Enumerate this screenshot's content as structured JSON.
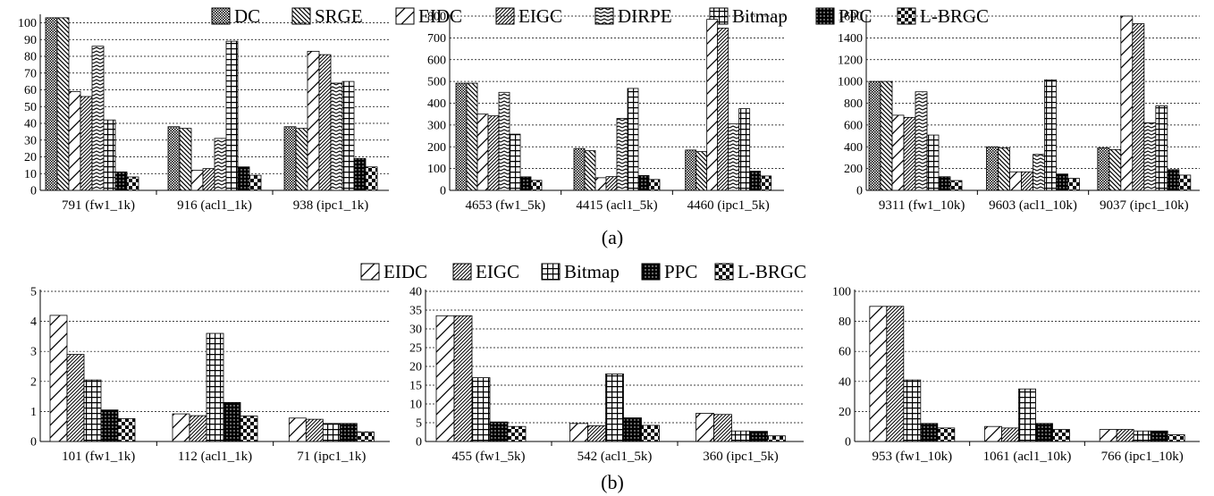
{
  "chart_data": [
    {
      "type": "bar",
      "group": "a",
      "categories": [
        "791 (fw1_1k)",
        "916 (acl1_1k)",
        "938 (ipc1_1k)"
      ],
      "ylim": [
        0,
        104
      ],
      "yticks": [
        0,
        10,
        20,
        30,
        40,
        50,
        60,
        70,
        80,
        90,
        100
      ],
      "series": [
        {
          "name": "DC",
          "values": [
            103,
            38,
            38
          ]
        },
        {
          "name": "SRGE",
          "values": [
            103,
            37,
            37
          ]
        },
        {
          "name": "EIDC",
          "values": [
            59,
            12,
            83
          ]
        },
        {
          "name": "EIGC",
          "values": [
            56,
            13,
            81
          ]
        },
        {
          "name": "DIRPE",
          "values": [
            86,
            31,
            64
          ]
        },
        {
          "name": "Bitmap",
          "values": [
            42,
            89,
            65
          ]
        },
        {
          "name": "PPC",
          "values": [
            11,
            14,
            19
          ]
        },
        {
          "name": "L-BRGC",
          "values": [
            8,
            9,
            14
          ]
        }
      ]
    },
    {
      "type": "bar",
      "group": "a",
      "categories": [
        "4653 (fw1_5k)",
        "4415 (acl1_5k)",
        "4460 (ipc1_5k)"
      ],
      "ylim": [
        0,
        800
      ],
      "yticks": [
        0,
        100,
        200,
        300,
        400,
        500,
        600,
        700,
        800
      ],
      "series": [
        {
          "name": "DC",
          "values": [
            492,
            192,
            185
          ]
        },
        {
          "name": "SRGE",
          "values": [
            492,
            182,
            178
          ]
        },
        {
          "name": "EIDC",
          "values": [
            350,
            58,
            785
          ]
        },
        {
          "name": "EIGC",
          "values": [
            342,
            63,
            745
          ]
        },
        {
          "name": "DIRPE",
          "values": [
            450,
            330,
            305
          ]
        },
        {
          "name": "Bitmap",
          "values": [
            258,
            468,
            375
          ]
        },
        {
          "name": "PPC",
          "values": [
            62,
            68,
            88
          ]
        },
        {
          "name": "L-BRGC",
          "values": [
            46,
            50,
            66
          ]
        }
      ]
    },
    {
      "type": "bar",
      "group": "a",
      "categories": [
        "9311 (fw1_10k)",
        "9603 (acl1_10k)",
        "9037 (ipc1_10k)"
      ],
      "ylim": [
        0,
        1600
      ],
      "yticks": [
        0,
        200,
        400,
        600,
        800,
        1000,
        1200,
        1400,
        1600
      ],
      "series": [
        {
          "name": "DC",
          "values": [
            1000,
            400,
            390
          ]
        },
        {
          "name": "SRGE",
          "values": [
            1000,
            390,
            375
          ]
        },
        {
          "name": "EIDC",
          "values": [
            690,
            170,
            1610
          ]
        },
        {
          "name": "EIGC",
          "values": [
            670,
            170,
            1530
          ]
        },
        {
          "name": "DIRPE",
          "values": [
            905,
            330,
            620
          ]
        },
        {
          "name": "Bitmap",
          "values": [
            508,
            1015,
            775
          ]
        },
        {
          "name": "PPC",
          "values": [
            125,
            150,
            190
          ]
        },
        {
          "name": "L-BRGC",
          "values": [
            90,
            110,
            140
          ]
        }
      ]
    },
    {
      "type": "bar",
      "group": "b",
      "categories": [
        "101 (fw1_1k)",
        "112 (acl1_1k)",
        "71 (ipc1_1k)"
      ],
      "ylim": [
        0,
        5
      ],
      "yticks": [
        0,
        1,
        2,
        3,
        4,
        5
      ],
      "series": [
        {
          "name": "EIDC",
          "values": [
            4.2,
            0.92,
            0.78
          ]
        },
        {
          "name": "EIGC",
          "values": [
            2.9,
            0.86,
            0.74
          ]
        },
        {
          "name": "Bitmap",
          "values": [
            2.05,
            3.6,
            0.6
          ]
        },
        {
          "name": "PPC",
          "values": [
            1.05,
            1.3,
            0.6
          ]
        },
        {
          "name": "L-BRGC",
          "values": [
            0.76,
            0.85,
            0.32
          ]
        }
      ]
    },
    {
      "type": "bar",
      "group": "b",
      "categories": [
        "455 (fw1_5k)",
        "542 (acl1_5k)",
        "360 (ipc1_5k)"
      ],
      "ylim": [
        0,
        40
      ],
      "yticks": [
        0,
        5,
        10,
        15,
        20,
        25,
        30,
        35,
        40
      ],
      "series": [
        {
          "name": "EIDC",
          "values": [
            33.5,
            4.8,
            7.5
          ]
        },
        {
          "name": "EIGC",
          "values": [
            33.5,
            4.2,
            7.2
          ]
        },
        {
          "name": "Bitmap",
          "values": [
            17,
            18,
            2.8
          ]
        },
        {
          "name": "PPC",
          "values": [
            5.2,
            6.3,
            2.7
          ]
        },
        {
          "name": "L-BRGC",
          "values": [
            4.0,
            4.3,
            1.5
          ]
        }
      ]
    },
    {
      "type": "bar",
      "group": "b",
      "categories": [
        "953 (fw1_10k)",
        "1061 (acl1_10k)",
        "766 (ipc1_10k)"
      ],
      "ylim": [
        0,
        100
      ],
      "yticks": [
        0,
        20,
        40,
        60,
        80,
        100
      ],
      "series": [
        {
          "name": "EIDC",
          "values": [
            90,
            10,
            8
          ]
        },
        {
          "name": "EIGC",
          "values": [
            90,
            9,
            8
          ]
        },
        {
          "name": "Bitmap",
          "values": [
            41,
            35,
            7
          ]
        },
        {
          "name": "PPC",
          "values": [
            12,
            12,
            7
          ]
        },
        {
          "name": "L-BRGC",
          "values": [
            9,
            8,
            4.5
          ]
        }
      ]
    }
  ],
  "legend_a": [
    "DC",
    "SRGE",
    "EIDC",
    "EIGC",
    "DIRPE",
    "Bitmap",
    "PPC",
    "L-BRGC"
  ],
  "legend_b": [
    "EIDC",
    "EIGC",
    "Bitmap",
    "PPC",
    "L-BRGC"
  ],
  "caption_a": "(a)",
  "caption_b": "(b)"
}
